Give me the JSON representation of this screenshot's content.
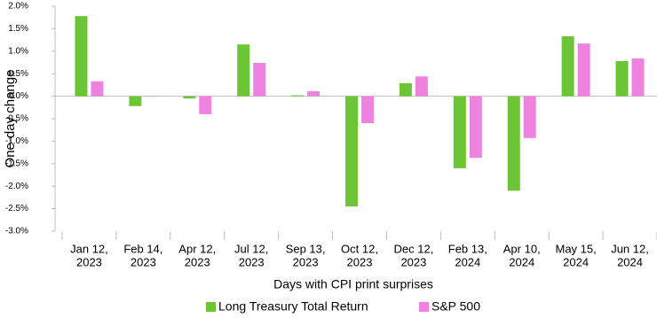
{
  "chart_data": {
    "type": "bar",
    "y_label": "One-day  change",
    "x_label": "Days with CPI print surprises",
    "categories": [
      [
        "Jan 12,",
        "2023"
      ],
      [
        "Feb 14,",
        "2023"
      ],
      [
        "Apr 12,",
        "2023"
      ],
      [
        "Jul 12,",
        "2023"
      ],
      [
        "Sep 13,",
        "2023"
      ],
      [
        "Oct 12,",
        "2023"
      ],
      [
        "Dec 12,",
        "2023"
      ],
      [
        "Feb 13,",
        "2024"
      ],
      [
        "Apr 10,",
        "2024"
      ],
      [
        "May 15,",
        "2024"
      ],
      [
        "Jun 12,",
        "2024"
      ]
    ],
    "series": [
      {
        "name": "Long Treasury Total Return",
        "color": "#6cc534",
        "values": [
          1.78,
          -0.22,
          -0.05,
          1.15,
          0.02,
          -2.45,
          0.29,
          -1.6,
          -2.1,
          1.33,
          0.78
        ]
      },
      {
        "name": "S&P 500",
        "color": "#ee82de",
        "values": [
          0.33,
          -0.01,
          -0.4,
          0.74,
          0.11,
          -0.6,
          0.44,
          -1.37,
          -0.93,
          1.17,
          0.84
        ]
      }
    ],
    "ylim": [
      -3.0,
      2.0
    ],
    "yticks": [
      {
        "value": 2.0,
        "label": "2.0%"
      },
      {
        "value": 1.5,
        "label": "1.5%"
      },
      {
        "value": 1.0,
        "label": "1.0%"
      },
      {
        "value": 0.5,
        "label": "0.5%"
      },
      {
        "value": 0.0,
        "label": "0.0%"
      },
      {
        "value": -0.5,
        "label": "-0.5%"
      },
      {
        "value": -1.0,
        "label": "-1.0%"
      },
      {
        "value": -1.5,
        "label": "-1.5%"
      },
      {
        "value": -2.0,
        "label": "-2.0%"
      },
      {
        "value": -2.5,
        "label": "-2.5%"
      },
      {
        "value": -3.0,
        "label": "-3.0%"
      }
    ],
    "grid": false,
    "legend": "bottom"
  }
}
